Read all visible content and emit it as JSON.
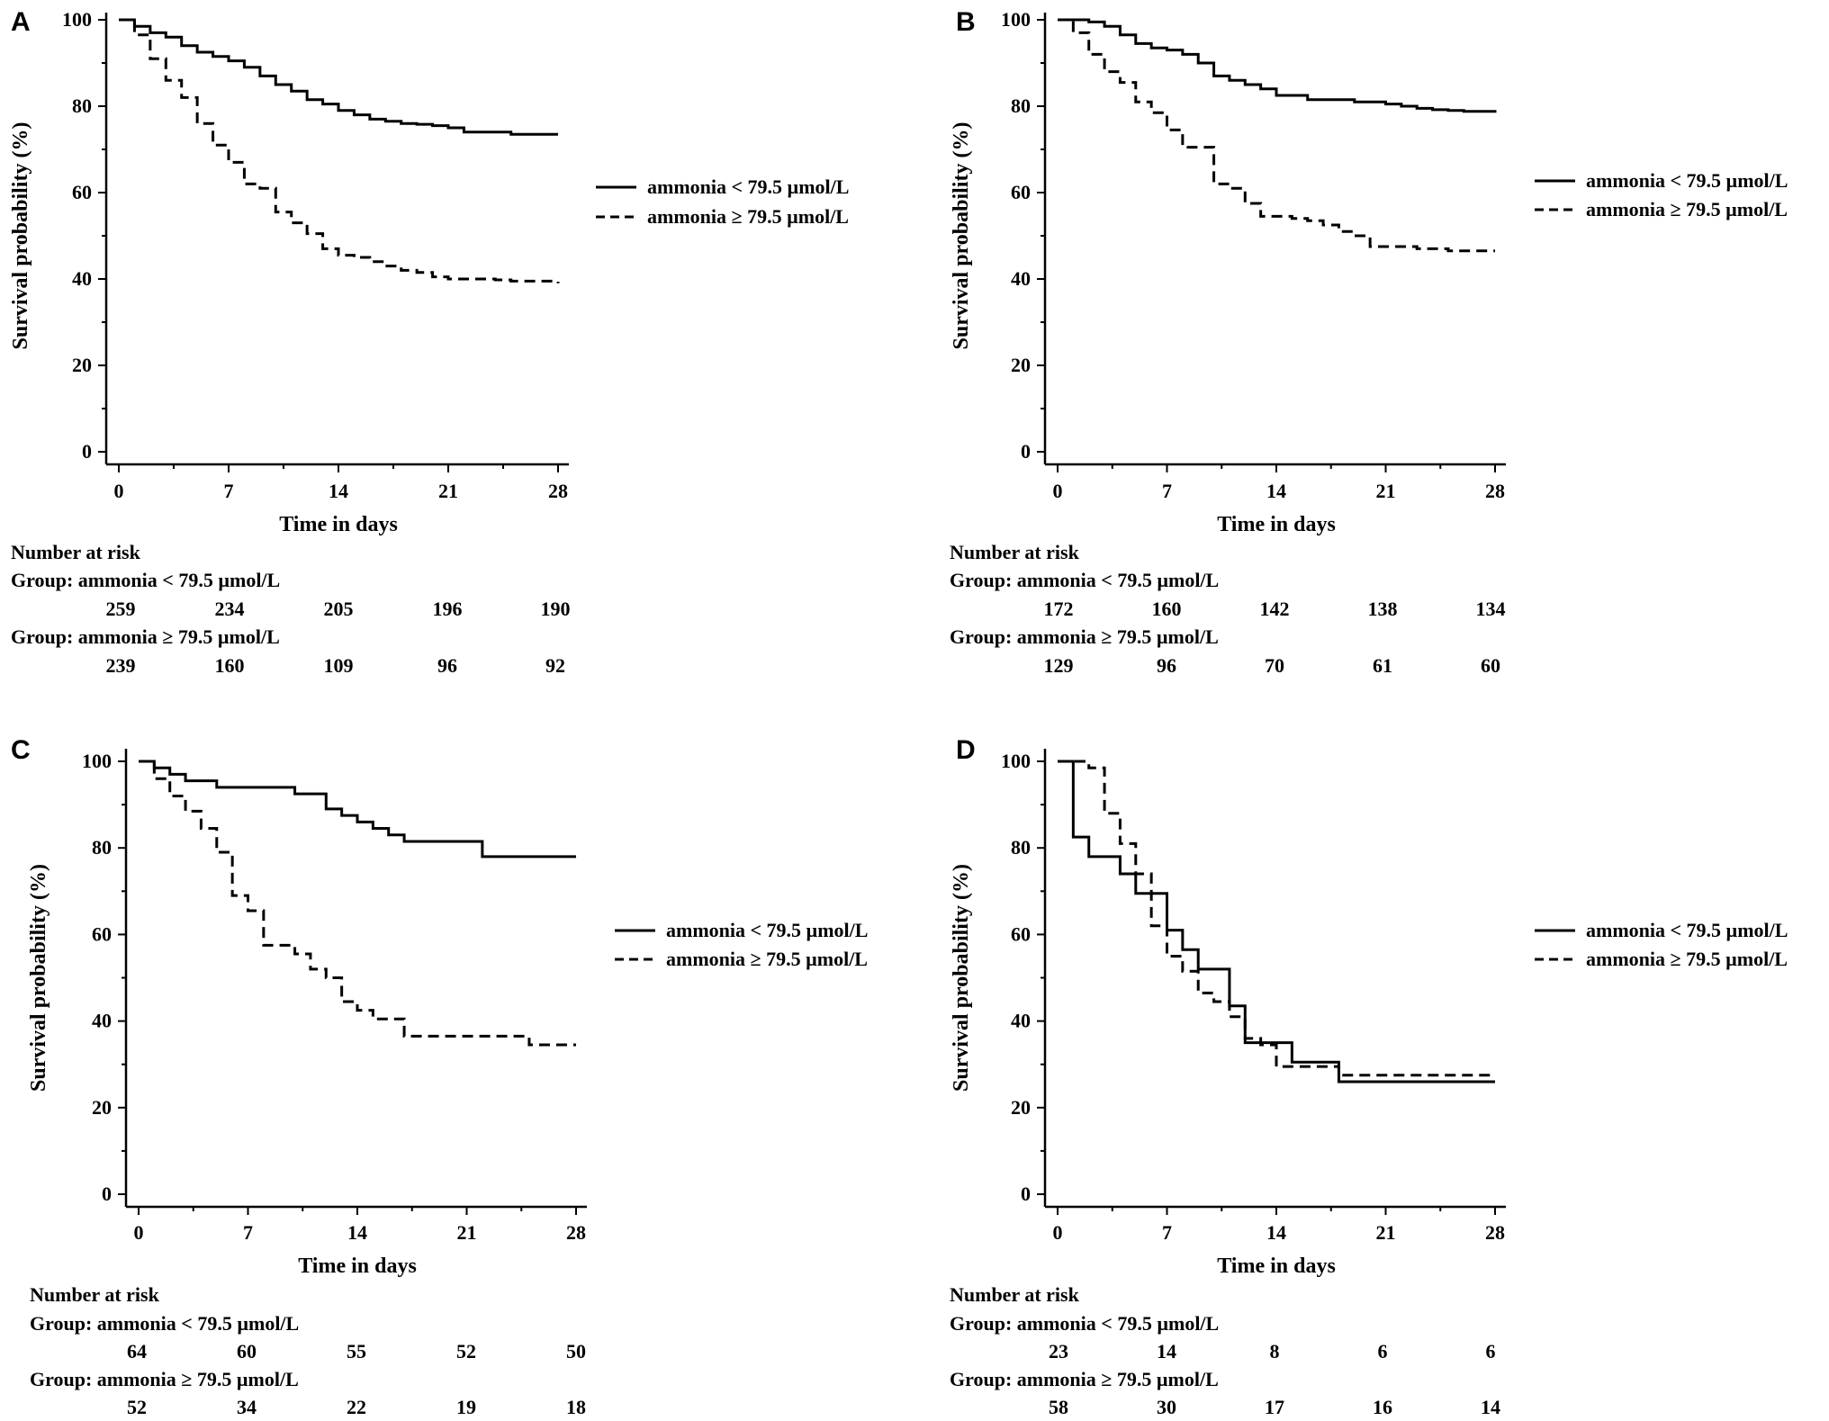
{
  "chart_data": [
    {
      "panel": "A",
      "type": "line",
      "xlabel": "Time in days",
      "ylabel": "Survival probability (%)",
      "xlim": [
        0,
        28
      ],
      "ylim": [
        0,
        100
      ],
      "xticks": [
        "0",
        "7",
        "14",
        "21",
        "28"
      ],
      "yticks": [
        "0",
        "20",
        "40",
        "60",
        "80",
        "100"
      ],
      "legend_position": "right",
      "series": [
        {
          "name": "ammonia < 79.5 µmol/L",
          "style": "solid",
          "x": [
            0,
            1,
            2,
            3,
            4,
            5,
            6,
            7,
            8,
            9,
            10,
            11,
            12,
            13,
            14,
            15,
            16,
            17,
            18,
            19,
            20,
            21,
            22,
            23,
            24,
            25,
            26,
            27,
            28
          ],
          "y": [
            100,
            98.5,
            97,
            96,
            94,
            92.5,
            91.5,
            90.5,
            89,
            87,
            85,
            83.5,
            81.5,
            80.5,
            79,
            78,
            77,
            76.5,
            76,
            75.8,
            75.5,
            75,
            74,
            74,
            74,
            73.5,
            73.5,
            73.5,
            73.5
          ]
        },
        {
          "name": "ammonia ≥ 79.5 µmol/L",
          "style": "dashed",
          "x": [
            0,
            1,
            2,
            3,
            4,
            5,
            6,
            7,
            8,
            9,
            10,
            11,
            12,
            13,
            14,
            15,
            16,
            17,
            18,
            19,
            20,
            21,
            22,
            23,
            24,
            25,
            26,
            27,
            28
          ],
          "y": [
            100,
            96.5,
            91,
            86,
            82,
            76,
            71,
            67,
            62,
            61,
            55.5,
            53,
            50.5,
            47,
            45.5,
            45,
            44,
            43,
            42,
            41.5,
            40.5,
            40,
            40,
            40,
            39.8,
            39.5,
            39.5,
            39.5,
            39
          ]
        }
      ],
      "risk_table": {
        "title": "Number at risk",
        "groups": [
          {
            "label": "Group: ammonia < 79.5 µmol/L",
            "counts": [
              "259",
              "234",
              "205",
              "196",
              "190"
            ]
          },
          {
            "label": "Group: ammonia ≥ 79.5 µmol/L",
            "counts": [
              "239",
              "160",
              "109",
              "96",
              "92"
            ]
          }
        ]
      }
    },
    {
      "panel": "B",
      "type": "line",
      "xlabel": "Time in days",
      "ylabel": "Survival probability (%)",
      "xlim": [
        0,
        28
      ],
      "ylim": [
        0,
        100
      ],
      "xticks": [
        "0",
        "7",
        "14",
        "21",
        "28"
      ],
      "yticks": [
        "0",
        "20",
        "40",
        "60",
        "80",
        "100"
      ],
      "legend_position": "right",
      "series": [
        {
          "name": "ammonia < 79.5 µmol/L",
          "style": "solid",
          "x": [
            0,
            1,
            2,
            3,
            4,
            5,
            6,
            7,
            8,
            9,
            10,
            11,
            12,
            13,
            14,
            15,
            16,
            17,
            18,
            19,
            20,
            21,
            22,
            23,
            24,
            25,
            26,
            27,
            28
          ],
          "y": [
            100,
            100,
            99.5,
            98.5,
            96.5,
            94.5,
            93.5,
            93,
            92,
            90,
            87,
            86,
            85,
            84,
            82.5,
            82.5,
            81.5,
            81.5,
            81.5,
            81,
            81,
            80.5,
            80,
            79.5,
            79.2,
            79,
            78.8,
            78.8,
            78.5
          ]
        },
        {
          "name": "ammonia ≥ 79.5 µmol/L",
          "style": "dashed",
          "x": [
            0,
            1,
            2,
            3,
            4,
            5,
            6,
            7,
            8,
            9,
            10,
            11,
            12,
            13,
            14,
            15,
            16,
            17,
            18,
            19,
            20,
            21,
            22,
            23,
            24,
            25,
            26,
            27,
            28
          ],
          "y": [
            100,
            97,
            92,
            88,
            85.5,
            81,
            78.5,
            74.5,
            70.5,
            70.5,
            62,
            61,
            57.5,
            54.5,
            54.5,
            54,
            53.5,
            52.5,
            51,
            50,
            47.5,
            47.5,
            47.5,
            47,
            47,
            46.5,
            46.5,
            46.5,
            46.5
          ]
        }
      ],
      "risk_table": {
        "title": "Number at risk",
        "groups": [
          {
            "label": "Group: ammonia < 79.5 µmol/L",
            "counts": [
              "172",
              "160",
              "142",
              "138",
              "134"
            ]
          },
          {
            "label": "Group: ammonia ≥ 79.5 µmol/L",
            "counts": [
              "129",
              "96",
              "70",
              "61",
              "60"
            ]
          }
        ]
      }
    },
    {
      "panel": "C",
      "type": "line",
      "xlabel": "Time in days",
      "ylabel": "Survival probability (%)",
      "xlim": [
        0,
        28
      ],
      "ylim": [
        0,
        100
      ],
      "xticks": [
        "0",
        "7",
        "14",
        "21",
        "28"
      ],
      "yticks": [
        "0",
        "20",
        "40",
        "60",
        "80",
        "100"
      ],
      "legend_position": "right",
      "series": [
        {
          "name": "ammonia < 79.5 µmol/L",
          "style": "solid",
          "x": [
            0,
            1,
            2,
            3,
            5,
            10,
            12,
            13,
            14,
            15,
            16,
            17,
            22,
            28
          ],
          "y": [
            100,
            98.5,
            97,
            95.5,
            94,
            92.5,
            89,
            87.5,
            86,
            84.5,
            83,
            81.5,
            78,
            78
          ]
        },
        {
          "name": "ammonia ≥ 79.5 µmol/L",
          "style": "dashed",
          "x": [
            0,
            1,
            2,
            3,
            4,
            5,
            6,
            7,
            8,
            10,
            11,
            12,
            13,
            14,
            15,
            17,
            25,
            28
          ],
          "y": [
            100,
            96,
            92,
            88.5,
            84.5,
            79,
            69,
            65.5,
            57.5,
            55.5,
            52,
            50,
            44.5,
            42.5,
            40.5,
            36.5,
            34.5,
            34.5
          ]
        }
      ],
      "risk_table": {
        "title": "Number at risk",
        "groups": [
          {
            "label": "Group: ammonia < 79.5 µmol/L",
            "counts": [
              "64",
              "60",
              "55",
              "52",
              "50"
            ]
          },
          {
            "label": "Group: ammonia ≥ 79.5 µmol/L",
            "counts": [
              "52",
              "34",
              "22",
              "19",
              "18"
            ]
          }
        ]
      }
    },
    {
      "panel": "D",
      "type": "line",
      "xlabel": "Time in days",
      "ylabel": "Survival probability (%)",
      "xlim": [
        0,
        28
      ],
      "ylim": [
        0,
        100
      ],
      "xticks": [
        "0",
        "7",
        "14",
        "21",
        "28"
      ],
      "yticks": [
        "0",
        "20",
        "40",
        "60",
        "80",
        "100"
      ],
      "legend_position": "right",
      "series": [
        {
          "name": "ammonia < 79.5 µmol/L",
          "style": "solid",
          "x": [
            0,
            1,
            2,
            4,
            5,
            7,
            8,
            9,
            11,
            12,
            15,
            18,
            28
          ],
          "y": [
            100,
            82.5,
            78,
            74,
            69.5,
            61,
            56.5,
            52,
            43.5,
            35,
            30.5,
            26,
            26
          ]
        },
        {
          "name": "ammonia ≥ 79.5 µmol/L",
          "style": "dashed",
          "x": [
            0,
            2,
            3,
            4,
            5,
            6,
            7,
            8,
            9,
            10,
            11,
            12,
            13,
            14,
            17,
            18,
            28
          ],
          "y": [
            100,
            98.5,
            88,
            81,
            74,
            62,
            55,
            51.5,
            46.5,
            44.5,
            41,
            36,
            34.5,
            29.5,
            29.5,
            27.5,
            27.5
          ]
        }
      ],
      "risk_table": {
        "title": "Number at risk",
        "groups": [
          {
            "label": "Group: ammonia < 79.5 µmol/L",
            "counts": [
              "23",
              "14",
              "8",
              "6",
              "6"
            ]
          },
          {
            "label": "Group: ammonia ≥ 79.5 µmol/L",
            "counts": [
              "58",
              "30",
              "17",
              "16",
              "14"
            ]
          }
        ]
      }
    }
  ]
}
